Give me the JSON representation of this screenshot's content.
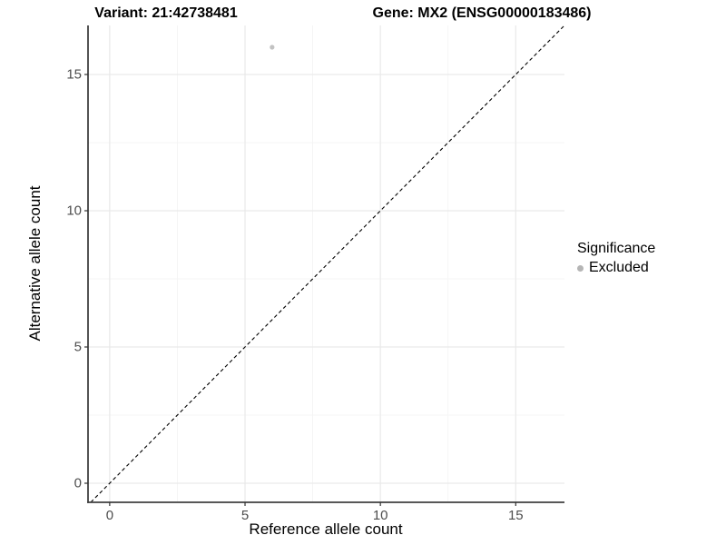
{
  "header": {
    "variant_title": "Variant: 21:42738481",
    "gene_title": "Gene: MX2 (ENSG00000183486)"
  },
  "legend": {
    "title": "Significance",
    "items": [
      {
        "label": "Excluded",
        "color": "#b5b5b5"
      }
    ]
  },
  "chart_data": {
    "type": "scatter",
    "xlabel": "Reference allele count",
    "ylabel": "Alternative allele count",
    "xlim": [
      -0.8,
      16.8
    ],
    "ylim": [
      -0.7,
      16.8
    ],
    "x_ticks": [
      0,
      5,
      10,
      15
    ],
    "y_ticks": [
      0,
      5,
      10,
      15
    ],
    "minor_grid_step": 2.5,
    "grid": true,
    "legend_position": "right",
    "identity_line": {
      "type": "dashed",
      "color": "#000000",
      "dash": [
        4,
        3
      ],
      "width": 1.1
    },
    "series": [
      {
        "name": "Excluded",
        "color": "#c2c2c2",
        "point_radius": 2.6,
        "points": [
          {
            "x": 6,
            "y": 16
          }
        ]
      }
    ]
  },
  "colors": {
    "background": "#ffffff",
    "axis_line": "#404040",
    "tick_mark": "#333333",
    "tick_label": "#4d4d4d",
    "grid_major": "#e9e9e9",
    "grid_minor": "#f3f3f3",
    "title": "#000000"
  }
}
